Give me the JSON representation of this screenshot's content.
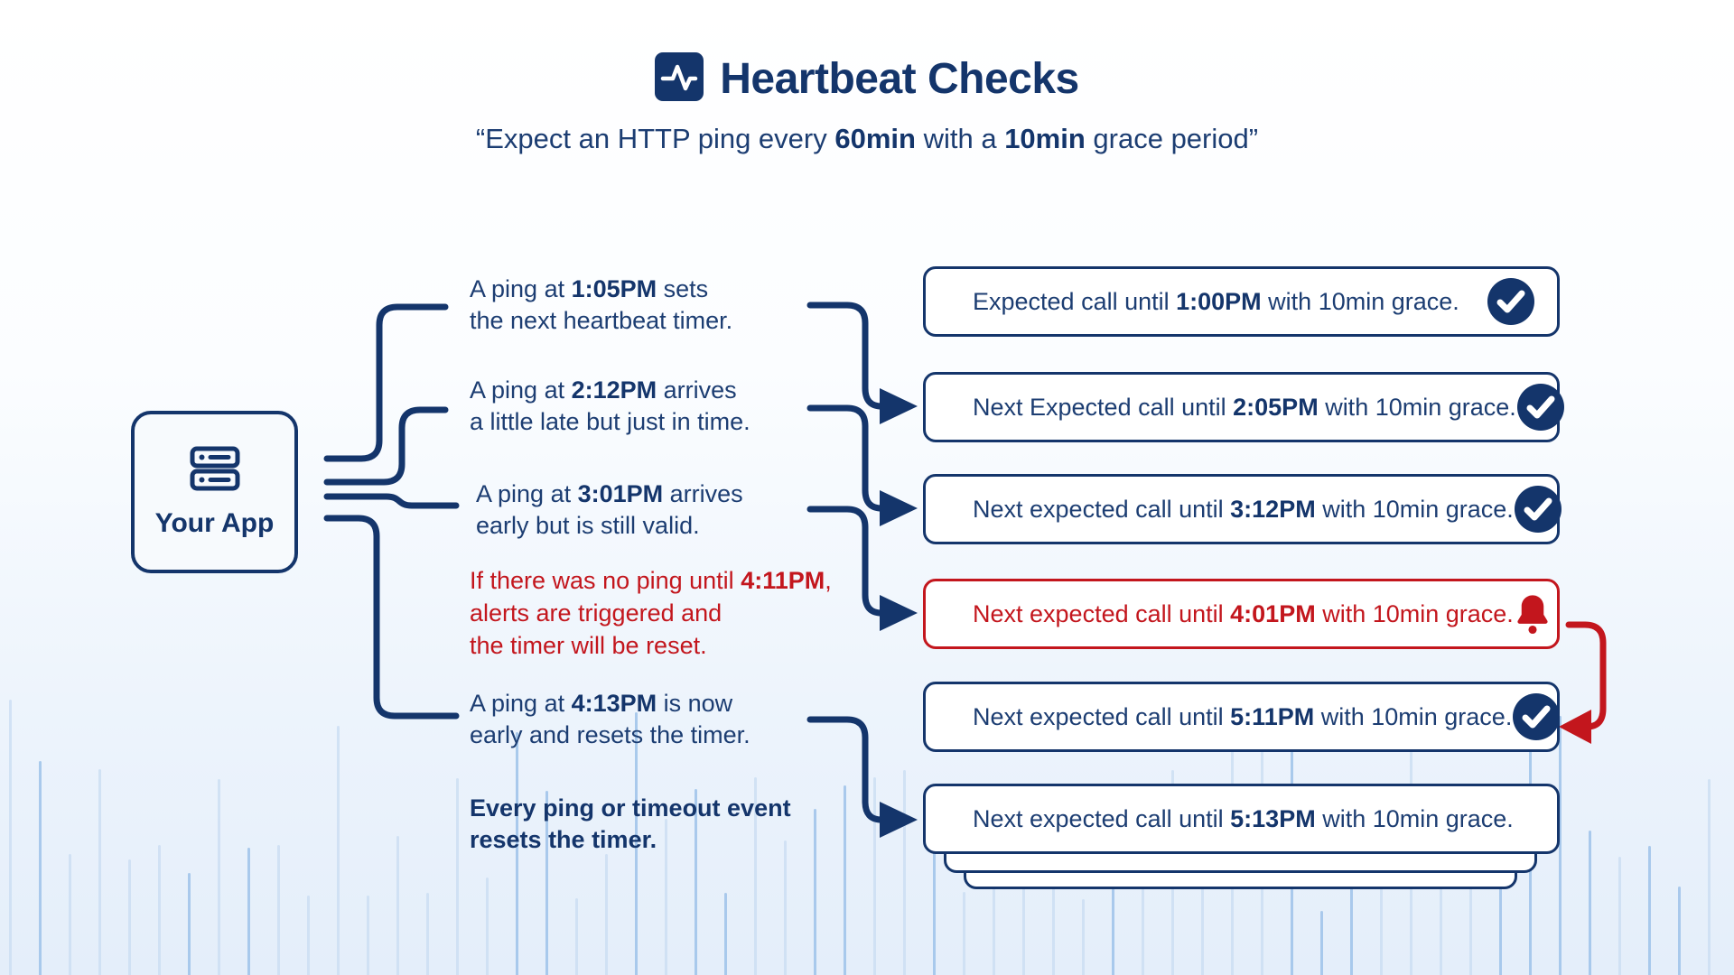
{
  "title": {
    "text": "Heartbeat Checks"
  },
  "subtitle": {
    "p1": "“Expect an HTTP ping every ",
    "b1": "60min",
    "p2": " with a ",
    "b2": "10min",
    "p3": " grace period”"
  },
  "app_box": {
    "label": "Your App"
  },
  "notes": [
    {
      "lines": [
        {
          "pre": "A ping at ",
          "bold": "1:05PM",
          "post": " sets"
        },
        {
          "pre": "the next heartbeat timer."
        }
      ]
    },
    {
      "lines": [
        {
          "pre": "A ping at ",
          "bold": "2:12PM",
          "post": " arrives"
        },
        {
          "pre": "a little late but just in time."
        }
      ]
    },
    {
      "lines": [
        {
          "pre": "A ping at ",
          "bold": "3:01PM",
          "post": " arrives"
        },
        {
          "pre": "early but is still valid."
        }
      ]
    },
    {
      "lines": [
        {
          "pre": "If there was no ping until ",
          "bold": "4:11PM",
          "post": ","
        },
        {
          "pre": "alerts are triggered and"
        },
        {
          "pre": "the timer will be reset."
        }
      ]
    },
    {
      "lines": [
        {
          "pre": "A ping at ",
          "bold": "4:13PM",
          "post": " is now"
        },
        {
          "pre": "early and resets the timer."
        }
      ]
    },
    {
      "lines": [
        {
          "pre": "Every ping or timeout event"
        },
        {
          "pre": "resets the timer."
        }
      ]
    }
  ],
  "cards": [
    {
      "pre": "Expected call until ",
      "bold": "1:00PM",
      "post": " with 10min grace.",
      "icon": "check"
    },
    {
      "pre": "Next Expected call until ",
      "bold": "2:05PM",
      "post": " with 10min grace.",
      "icon": "check"
    },
    {
      "pre": "Next expected call until ",
      "bold": "3:12PM",
      "post": " with 10min grace.",
      "icon": "check"
    },
    {
      "pre": "Next expected call until ",
      "bold": "4:01PM",
      "post": " with 10min grace.",
      "icon": "bell"
    },
    {
      "pre": "Next expected call until ",
      "bold": "5:11PM",
      "post": " with 10min grace.",
      "icon": "check"
    },
    {
      "pre": "Next expected call until ",
      "bold": "5:13PM",
      "post": " with 10min grace.",
      "icon": "none"
    }
  ],
  "colors": {
    "navy": "#14356B",
    "alert_red": "#C3161D",
    "card_background": "#FFFFFF",
    "bar_light": "#CBDDF2",
    "bar_dark": "#9DC2E9"
  }
}
